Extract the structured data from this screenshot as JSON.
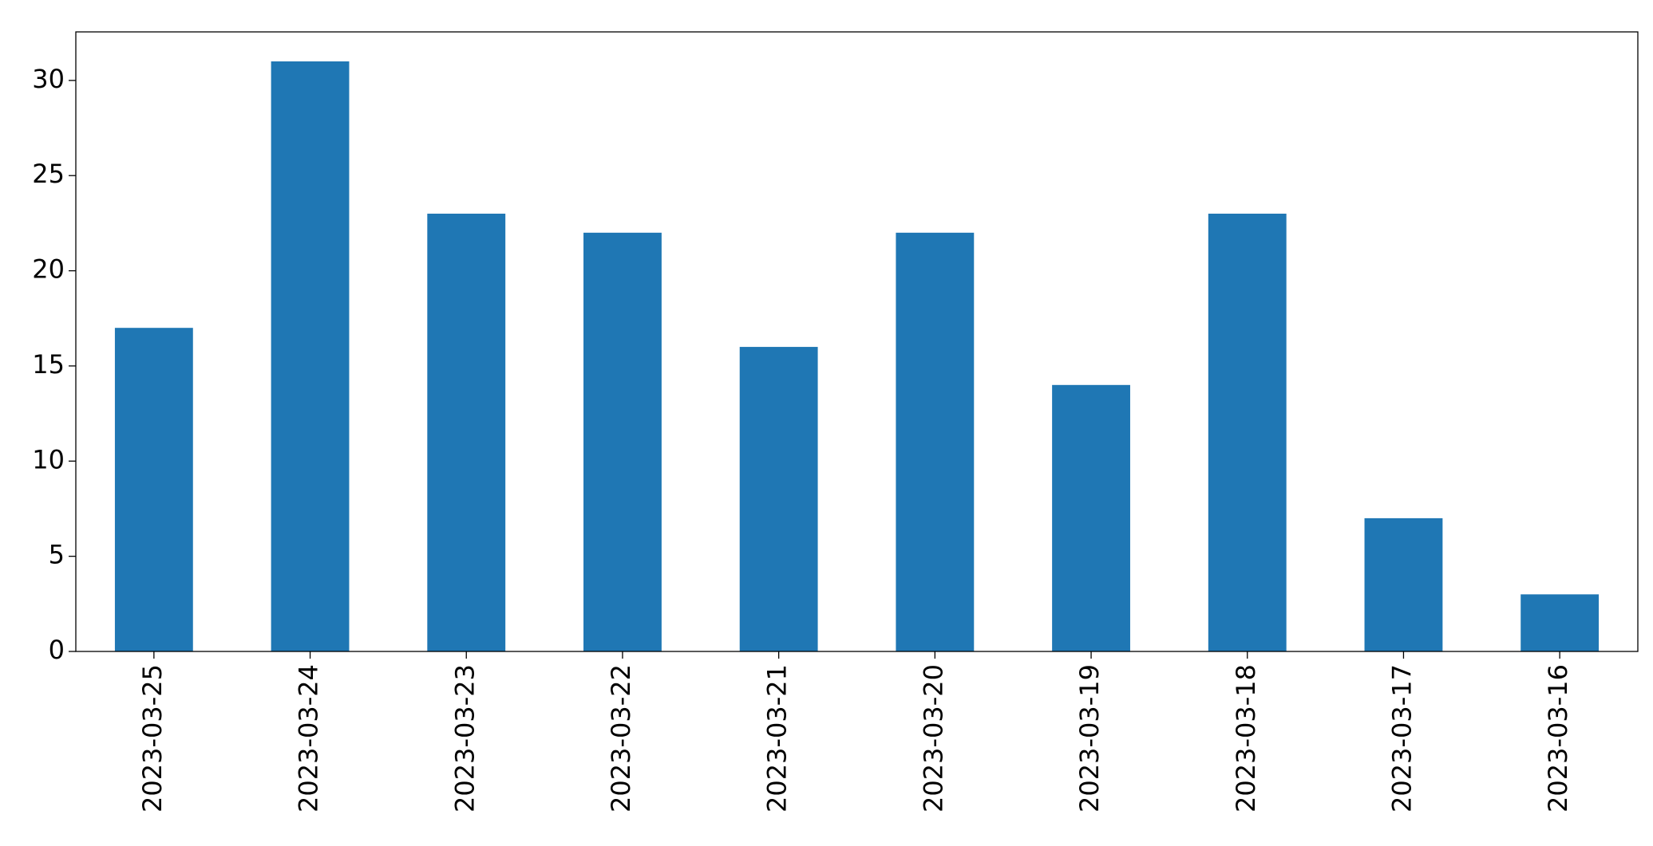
{
  "chart_data": {
    "type": "bar",
    "categories": [
      "2023-03-25",
      "2023-03-24",
      "2023-03-23",
      "2023-03-22",
      "2023-03-21",
      "2023-03-20",
      "2023-03-19",
      "2023-03-18",
      "2023-03-17",
      "2023-03-16"
    ],
    "values": [
      17,
      31,
      23,
      22,
      16,
      22,
      14,
      23,
      7,
      3
    ],
    "color": "#1f77b4",
    "ylim": [
      0,
      32.55
    ],
    "yticks": [
      0,
      5,
      10,
      15,
      20,
      25,
      30
    ],
    "grid": false
  }
}
